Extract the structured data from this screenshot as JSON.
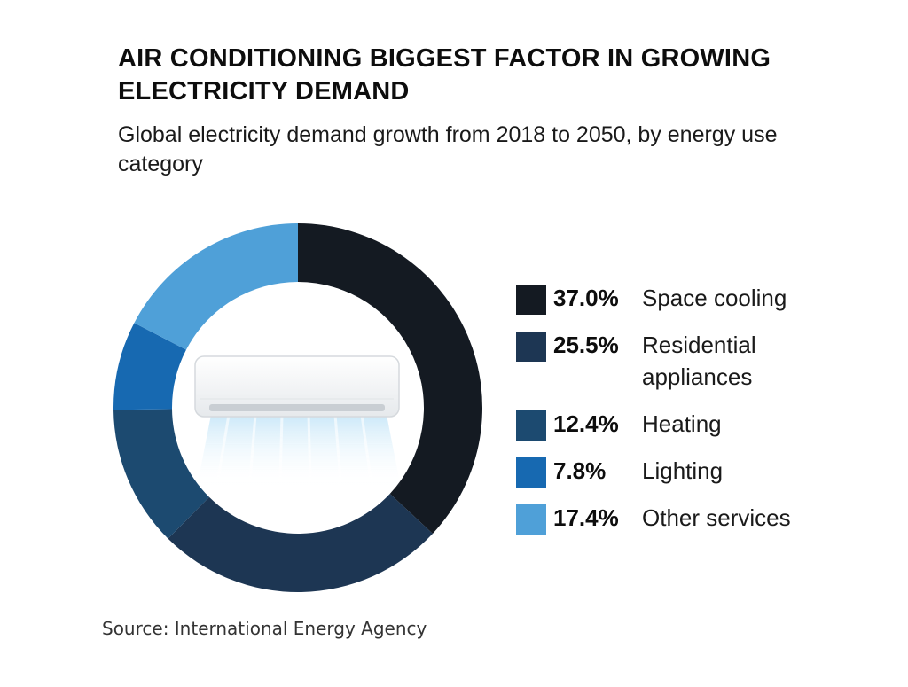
{
  "chart_data": {
    "type": "pie",
    "title": "AIR CONDITIONING BIGGEST FACTOR IN GROWING ELECTRICITY DEMAND",
    "subtitle": "Global electricity demand growth from 2018 to 2050, by energy use category",
    "categories": [
      "Space cooling",
      "Residential appliances",
      "Heating",
      "Lighting",
      "Other services"
    ],
    "values": [
      37.0,
      25.5,
      12.4,
      7.8,
      17.4
    ],
    "labels": [
      "37.0%",
      "25.5%",
      "12.4%",
      "7.8%",
      "17.4%"
    ],
    "colors": [
      "#141a22",
      "#1d3653",
      "#1c4a70",
      "#1769b1",
      "#4fa0d8"
    ],
    "legend_position": "right",
    "donut": true,
    "center_image": "air-conditioner-icon",
    "source": "Source: International Energy Agency"
  }
}
